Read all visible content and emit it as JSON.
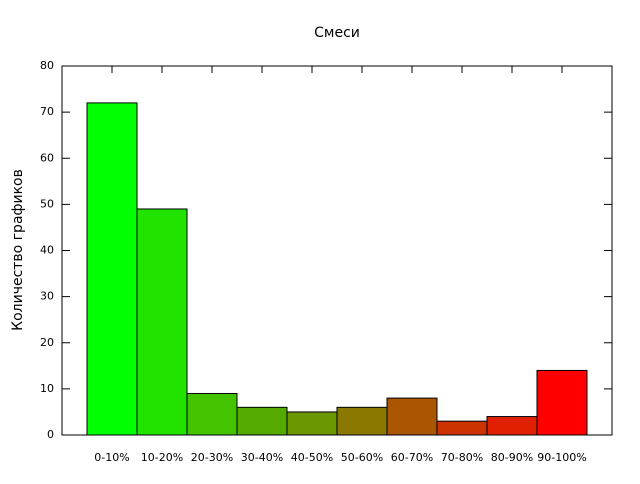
{
  "chart_data": {
    "type": "bar",
    "title": "Смеси",
    "y_label": "Количество графиков",
    "categories": [
      "0-10%",
      "10-20%",
      "20-30%",
      "30-40%",
      "40-50%",
      "50-60%",
      "60-70%",
      "70-80%",
      "80-90%",
      "90-100%"
    ],
    "values": [
      72,
      49,
      9,
      6,
      5,
      6,
      8,
      3,
      4,
      14
    ],
    "colors": [
      "#00ff00",
      "#22e200",
      "#44c400",
      "#55aa00",
      "#6a9600",
      "#8a7800",
      "#aa5500",
      "#cc3300",
      "#e02000",
      "#ff0000"
    ],
    "ylim": [
      0,
      80
    ],
    "yticks": [
      0,
      10,
      20,
      30,
      40,
      50,
      60,
      70,
      80
    ]
  }
}
